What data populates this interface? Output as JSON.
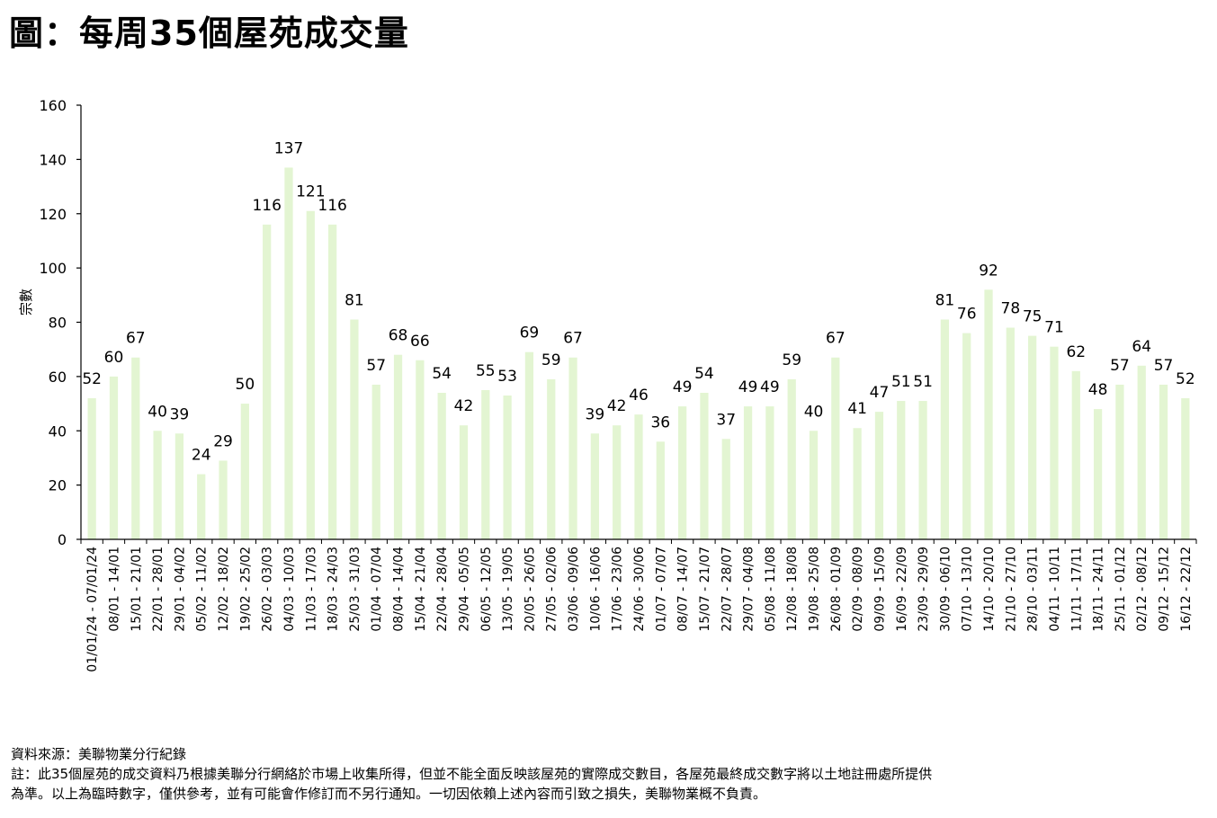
{
  "title": "圖：每周35個屋苑成交量",
  "chart_data": {
    "type": "bar",
    "title": "圖：每周35個屋苑成交量",
    "ylabel": "宗數",
    "xlabel": "",
    "ylim": [
      0,
      160
    ],
    "yticks": [
      0,
      20,
      40,
      60,
      80,
      100,
      120,
      140,
      160
    ],
    "grid": false,
    "legend": "none",
    "bar_color": "#e3f5d2",
    "categories": [
      "01/01/24 - 07/01/24",
      "08/01 - 14/01",
      "15/01 - 21/01",
      "22/01 - 28/01",
      "29/01 - 04/02",
      "05/02 - 11/02",
      "12/02 - 18/02",
      "19/02 - 25/02",
      "26/02 - 03/03",
      "04/03 - 10/03",
      "11/03 - 17/03",
      "18/03 - 24/03",
      "25/03 - 31/03",
      "01/04 - 07/04",
      "08/04 - 14/04",
      "15/04 - 21/04",
      "22/04 - 28/04",
      "29/04 - 05/05",
      "06/05 - 12/05",
      "13/05 - 19/05",
      "20/05 - 26/05",
      "27/05 - 02/06",
      "03/06 - 09/06",
      "10/06 - 16/06",
      "17/06 - 23/06",
      "24/06 - 30/06",
      "01/07 - 07/07",
      "08/07 - 14/07",
      "15/07 - 21/07",
      "22/07 - 28/07",
      "29/07 - 04/08",
      "05/08 - 11/08",
      "12/08 - 18/08",
      "19/08 - 25/08",
      "26/08 - 01/09",
      "02/09 - 08/09",
      "09/09 - 15/09",
      "16/09 - 22/09",
      "23/09 - 29/09",
      "30/09 - 06/10",
      "07/10 - 13/10",
      "14/10 - 20/10",
      "21/10 - 27/10",
      "28/10 - 03/11",
      "04/11 - 10/11",
      "11/11 - 17/11",
      "18/11 - 24/11",
      "25/11 - 01/12",
      "02/12 - 08/12",
      "09/12 - 15/12",
      "16/12 - 22/12"
    ],
    "values": [
      52,
      60,
      67,
      40,
      39,
      24,
      29,
      50,
      116,
      137,
      121,
      116,
      81,
      57,
      68,
      66,
      54,
      42,
      55,
      53,
      69,
      59,
      67,
      39,
      42,
      46,
      36,
      49,
      54,
      37,
      49,
      49,
      59,
      40,
      67,
      41,
      47,
      51,
      51,
      81,
      76,
      92,
      78,
      75,
      71,
      62,
      48,
      57,
      64,
      57,
      52
    ]
  },
  "notes": {
    "source": "資料來源：美聯物業分行紀錄",
    "note_line1": "註：此35個屋苑的成交資料乃根據美聯分行網絡於市場上收集所得，但並不能全面反映該屋苑的實際成交數目，各屋苑最終成交數字將以土地註冊處所提供",
    "note_line2": "為準。以上為臨時數字，僅供參考，並有可能會作修訂而不另行通知。一切因依賴上述內容而引致之損失，美聯物業概不負責。"
  }
}
